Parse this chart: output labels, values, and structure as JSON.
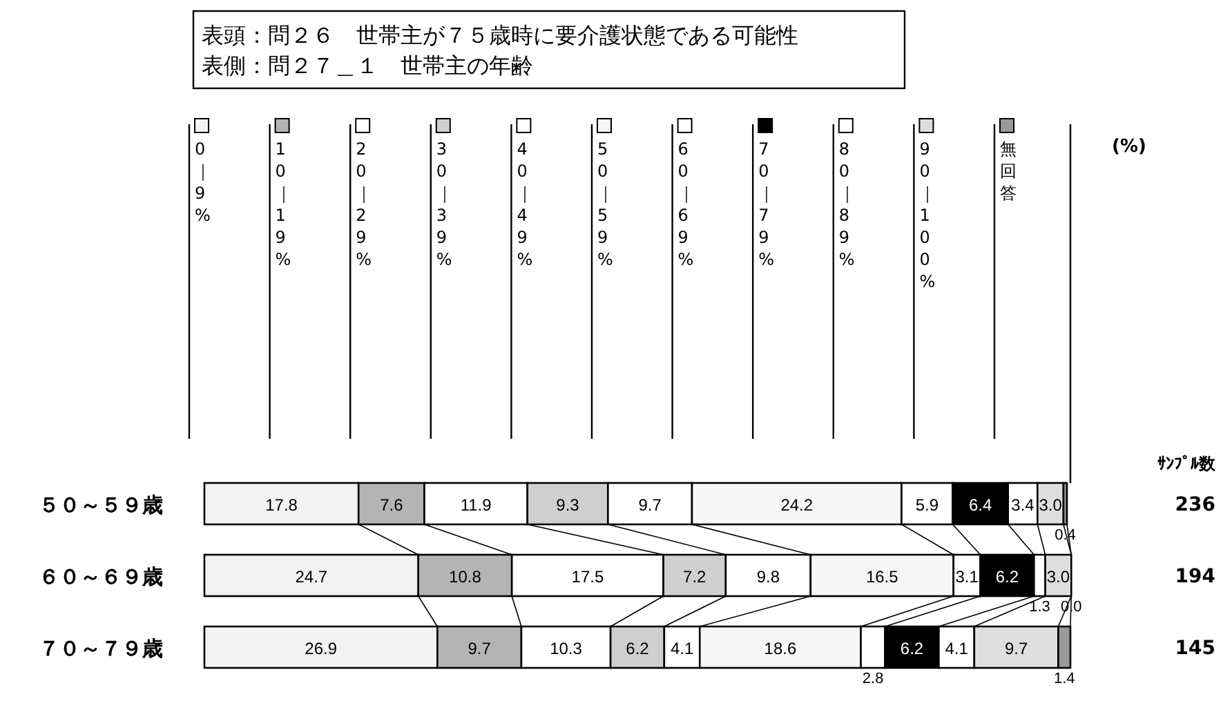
{
  "chart_data": {
    "type": "bar",
    "stacked": true,
    "orientation": "horizontal",
    "data_labels": true,
    "title": "表頭：問２６　世帯主が７５歳時に要介護状態である可能性",
    "subtitle": "表側：問２７＿１　世帯主の年齢",
    "xlim": [
      0,
      100
    ],
    "legend": "top",
    "categories": [
      "５０～５９歳",
      "６０～６９歳",
      "７０～７９歳"
    ],
    "annotations": [
      "(%)",
      "ｻﾝﾌﾟﾙ数",
      "236",
      "194",
      "145"
    ],
    "series": [
      {
        "name": "0｜9%",
        "color": "#f2f2f2",
        "values": [
          17.8,
          24.7,
          26.9
        ]
      },
      {
        "name": "10｜19%",
        "color": "#b4b4b4",
        "values": [
          7.6,
          10.8,
          9.7
        ]
      },
      {
        "name": "20｜29%",
        "color": "#ffffff",
        "values": [
          11.9,
          17.5,
          10.3
        ]
      },
      {
        "name": "30｜39%",
        "color": "#cfcfcf",
        "values": [
          9.3,
          7.2,
          6.2
        ]
      },
      {
        "name": "40｜49%",
        "color": "#ffffff",
        "values": [
          9.7,
          9.8,
          4.1
        ]
      },
      {
        "name": "50｜59%",
        "color": "#f7f7f7",
        "values": [
          24.2,
          16.5,
          18.6
        ]
      },
      {
        "name": "60｜69%",
        "color": "#ffffff",
        "values": [
          5.9,
          3.1,
          2.8
        ]
      },
      {
        "name": "70｜79%",
        "color": "#000000",
        "values": [
          6.4,
          6.2,
          6.2
        ]
      },
      {
        "name": "80｜89%",
        "color": "#ffffff",
        "values": [
          3.4,
          1.3,
          4.1
        ]
      },
      {
        "name": "90｜100%",
        "color": "#dedede",
        "values": [
          3.0,
          3.0,
          9.7
        ],
        "value_labels": [
          "3.0",
          "3.0",
          "9.7"
        ]
      },
      {
        "name": "無回答",
        "color": "#9a9a9a",
        "values": [
          0.4,
          0.0,
          1.4
        ],
        "value_labels": [
          "0.4",
          "0.0",
          "1.4"
        ]
      }
    ]
  }
}
